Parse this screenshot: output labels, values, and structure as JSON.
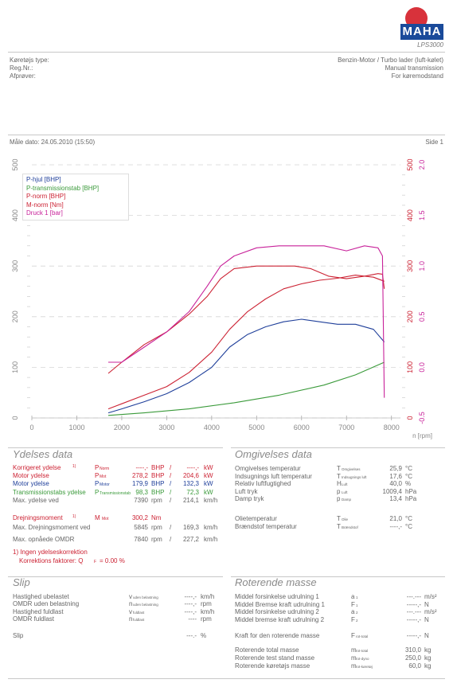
{
  "brand": {
    "logo_text": "MAHA",
    "model": "LPS3000"
  },
  "header": {
    "left": [
      "Køretøjs type:",
      "Reg.Nr.:",
      "Afprøver:"
    ],
    "right": [
      "Benzin-Motor / Turbo lader (luft-kølet)",
      "Manual transmission",
      "For køremodstand"
    ]
  },
  "meta": {
    "date": "Måle dato: 24.05.2010 (15:50)",
    "page": "Side 1"
  },
  "legend": [
    "P-hjul [BHP]",
    "P-transmissionstab [BHP]",
    "P-norm [BHP]",
    "M-norm [Nm]",
    "Druck 1 [bar]"
  ],
  "colors": {
    "blue": "#1f3f9a",
    "green": "#3a9a3a",
    "red": "#cc2233",
    "pink": "#c8229a"
  },
  "chart_data": {
    "type": "line",
    "xlabel": "n [rpm]",
    "x_ticks": [
      "0",
      "1000",
      "2000",
      "3000",
      "4000",
      "5000",
      "6000",
      "7000",
      "8000"
    ],
    "xlim": [
      0,
      8200
    ],
    "y_left_ticks": [
      "0",
      "100",
      "200",
      "300",
      "400",
      "500"
    ],
    "y_left_lim": [
      0,
      500
    ],
    "y_right1_ticks": [
      "0",
      "100",
      "200",
      "300",
      "400",
      "500"
    ],
    "y_right2_ticks": [
      "-0.5",
      "0.0",
      "0.5",
      "1.0",
      "1.5",
      "2.0"
    ],
    "y_right2_lim": [
      -0.5,
      2.0
    ],
    "series": [
      {
        "name": "P-hjul [BHP]",
        "color": "#1f3f9a",
        "axis": "left",
        "x": [
          1700,
          2000,
          2500,
          3000,
          3500,
          4000,
          4400,
          4800,
          5200,
          5600,
          6000,
          6400,
          6800,
          7200,
          7600,
          7840
        ],
        "y": [
          10,
          18,
          32,
          48,
          70,
          100,
          140,
          165,
          180,
          190,
          195,
          190,
          185,
          185,
          175,
          150
        ]
      },
      {
        "name": "P-transmissionstab [BHP]",
        "color": "#3a9a3a",
        "axis": "left",
        "x": [
          1700,
          2500,
          3500,
          4500,
          5500,
          6500,
          7200,
          7840
        ],
        "y": [
          5,
          10,
          18,
          30,
          45,
          65,
          85,
          110
        ]
      },
      {
        "name": "P-norm [BHP]",
        "color": "#cc2233",
        "axis": "left",
        "x": [
          1700,
          2000,
          2500,
          3000,
          3500,
          4000,
          4400,
          4800,
          5200,
          5600,
          6000,
          6400,
          6800,
          7200,
          7600,
          7840
        ],
        "y": [
          18,
          28,
          45,
          62,
          90,
          130,
          175,
          210,
          235,
          255,
          265,
          272,
          276,
          282,
          278,
          270
        ]
      },
      {
        "name": "M-norm [Nm]",
        "color": "#cc2233",
        "axis": "left",
        "x": [
          1700,
          2000,
          2500,
          3000,
          3500,
          3900,
          4200,
          4500,
          5000,
          5500,
          5845,
          6200,
          6600,
          7000,
          7400,
          7700,
          7800,
          7840
        ],
        "y": [
          88,
          110,
          145,
          170,
          205,
          240,
          275,
          295,
          300,
          300,
          300,
          295,
          280,
          275,
          280,
          285,
          284,
          255
        ]
      },
      {
        "name": "Druck 1 [bar]",
        "color": "#c8229a",
        "axis": "right2",
        "x": [
          1700,
          2000,
          2500,
          3000,
          3500,
          3900,
          4200,
          4500,
          5000,
          5500,
          6000,
          6500,
          7000,
          7400,
          7700,
          7800,
          7840
        ],
        "y": [
          0.05,
          0.05,
          0.2,
          0.35,
          0.55,
          0.8,
          1.0,
          1.1,
          1.18,
          1.2,
          1.2,
          1.2,
          1.15,
          1.2,
          1.18,
          1.1,
          -0.3
        ]
      }
    ]
  },
  "perf": {
    "title": "Ydelses data",
    "rows": [
      {
        "label": "Korrigeret ydelse",
        "note": "1)",
        "sym": "P",
        "sub": "Norm",
        "v1": "----,-",
        "u1": "BHP",
        "sep": "/",
        "v2": "----,-",
        "u2": "kW"
      },
      {
        "label": "Motor ydelse",
        "note": "",
        "sym": "P",
        "sub": "Mot",
        "v1": "278,2",
        "u1": "BHP",
        "sep": "/",
        "v2": "204,6",
        "u2": "kW"
      },
      {
        "label": "Motor ydelse",
        "note": "",
        "sym": "P",
        "sub": "Motor",
        "v1": "179,9",
        "u1": "BHP",
        "sep": "/",
        "v2": "132,3",
        "u2": "kW"
      },
      {
        "label": "Transmissionstabs ydelse",
        "note": "",
        "sym": "P",
        "sub": "Transmissionstab",
        "v1": "98,3",
        "u1": "BHP",
        "sep": "/",
        "v2": "72,3",
        "u2": "kW"
      },
      {
        "label": "Max. ydelse ved",
        "note": "",
        "sym": "",
        "sub": "",
        "v1": "7390",
        "u1": "rpm",
        "sep": "/",
        "v2": "214,1",
        "u2": "km/h"
      }
    ],
    "torque": {
      "label": "Drejningsmoment",
      "note": "1)",
      "sym": "M",
      "sub": "Mot",
      "v1": "300,2",
      "u1": "Nm"
    },
    "torque_rows": [
      {
        "label": "Max. Drejningsmoment ved",
        "v1": "5845",
        "u1": "rpm",
        "sep": "/",
        "v2": "169,3",
        "u2": "km/h"
      },
      {
        "label": "Max. opnåede OMDR",
        "v1": "7840",
        "u1": "rpm",
        "sep": "/",
        "v2": "227,2",
        "u2": "km/h"
      }
    ],
    "note1": "1) Ingen ydelseskorrektion",
    "note2": "Korrektions faktorer: Q",
    "note2_sub": "F",
    "note2_val": "=   0.00 %"
  },
  "env": {
    "title": "Omgivelses data",
    "rows": [
      {
        "label": "Omgivelses temperatur",
        "sym": "T",
        "sub": "Omgivelses",
        "val": "25,9",
        "unit": "°C"
      },
      {
        "label": "Indsugnings luft temperatur",
        "sym": "T",
        "sub": "Indsugnings luft",
        "val": "17,6",
        "unit": "°C"
      },
      {
        "label": "Relativ luftfugtighed",
        "sym": "H",
        "sub": "Luft",
        "val": "40,0",
        "unit": "%"
      },
      {
        "label": "Luft tryk",
        "sym": "p",
        "sub": "Luft",
        "val": "1009,4",
        "unit": "hPa"
      },
      {
        "label": "Damp tryk",
        "sym": "p",
        "sub": "Damp",
        "val": "13,4",
        "unit": "hPa"
      },
      {
        "label": "Olietemperatur",
        "sym": "T",
        "sub": "Olie",
        "val": "21,0",
        "unit": "°C"
      },
      {
        "label": "Brændstof temperatur",
        "sym": "T",
        "sub": "Brændstof",
        "val": "----,-",
        "unit": "°C"
      }
    ]
  },
  "slip": {
    "title": "Slip",
    "rows": [
      {
        "label": "Hastighed ubelastet",
        "sym": "v",
        "sub": "uden belastning",
        "val": "----,-",
        "unit": "km/h"
      },
      {
        "label": "OMDR uden belastning",
        "sym": "n",
        "sub": "uden belastning",
        "val": "----,-",
        "unit": "rpm"
      },
      {
        "label": "Hastighed fuldlast",
        "sym": "v",
        "sub": "fuldlast",
        "val": "----,-",
        "unit": "km/h"
      },
      {
        "label": "OMDR fuldlast",
        "sym": "n",
        "sub": "fuldlast",
        "val": "----",
        "unit": "rpm"
      },
      {
        "label": "Slip",
        "sym": "",
        "sub": "",
        "val": "---.-",
        "unit": "%"
      }
    ]
  },
  "rot": {
    "title": "Roterende masse",
    "rows": [
      {
        "label": "Middel forsinkelse udrulning 1",
        "sym": "a",
        "sub": "1",
        "val": "---.---",
        "unit": "m/s²"
      },
      {
        "label": "Middel Bremse kraft udrulning 1",
        "sym": "F",
        "sub": "1",
        "val": "-----,-",
        "unit": "N"
      },
      {
        "label": "Middel forsinkelse udrulning 2",
        "sym": "a",
        "sub": "2",
        "val": "---.---",
        "unit": "m/s²"
      },
      {
        "label": "Middel bremse kraft udrulning 2",
        "sym": "F",
        "sub": "2",
        "val": "-----,-",
        "unit": "N"
      },
      {
        "label": "Kraft for den roterende masse",
        "sym": "F",
        "sub": "rot-total",
        "val": "-----,-",
        "unit": "N"
      },
      {
        "label": "Roterende total masse",
        "sym": "m",
        "sub": "rot-total",
        "val": "310,0",
        "unit": "kg"
      },
      {
        "label": "Roterende test stand masse",
        "sym": "m",
        "sub": "rot-dyno",
        "val": "250,0",
        "unit": "kg"
      },
      {
        "label": "Roterende køretøjs masse",
        "sym": "m",
        "sub": "rot-køretøj",
        "val": "60,0",
        "unit": "kg"
      }
    ]
  }
}
